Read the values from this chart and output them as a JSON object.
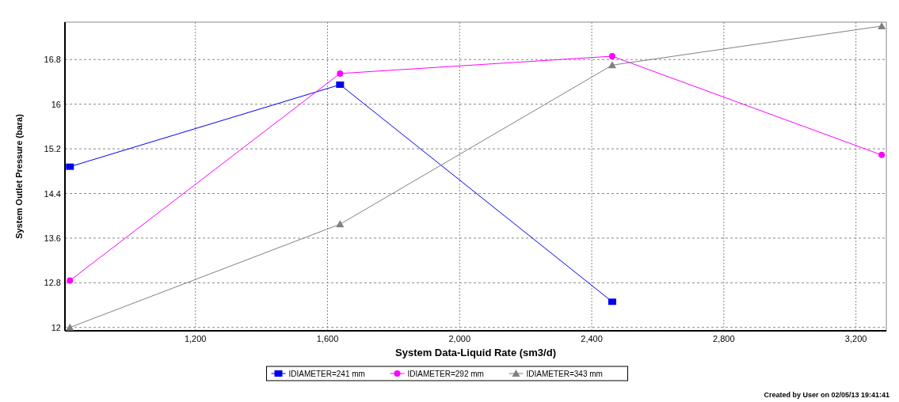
{
  "chart_data": {
    "type": "line",
    "xlabel": "System Data-Liquid Rate (sm3/d)",
    "ylabel": "System Outlet Pressure (bara)",
    "annotations": [
      "Created by User on 02/05/13 19:41:41"
    ],
    "xlim": [
      805,
      3292
    ],
    "xticks": [
      {
        "value": 1200,
        "label": "1,200"
      },
      {
        "value": 1600,
        "label": "1,600"
      },
      {
        "value": 2000,
        "label": "2,000"
      },
      {
        "value": 2400,
        "label": "2,400"
      },
      {
        "value": 2800,
        "label": "2,800"
      },
      {
        "value": 3200,
        "label": "3,200"
      }
    ],
    "ylim": [
      11.94,
      17.47
    ],
    "yticks": [
      12,
      12.8,
      13.6,
      14.4,
      15.2,
      16,
      16.8
    ],
    "grid": true,
    "legend": "bottom",
    "series": [
      {
        "name": "IDIAMETER=241 mm",
        "color": "#0000ee",
        "marker": "square",
        "x": [
          820,
          1638,
          2462
        ],
        "values": [
          14.88,
          16.35,
          12.46
        ]
      },
      {
        "name": "IDIAMETER=292 mm",
        "color": "#ff00ff",
        "marker": "circle",
        "x": [
          820,
          1638,
          2462,
          3278
        ],
        "values": [
          12.84,
          16.55,
          16.86,
          15.09
        ]
      },
      {
        "name": "IDIAMETER=343 mm",
        "color": "#808080",
        "marker": "triangle",
        "x": [
          820,
          1638,
          2462,
          3278
        ],
        "values": [
          12.0,
          13.85,
          16.7,
          17.4
        ]
      }
    ]
  }
}
